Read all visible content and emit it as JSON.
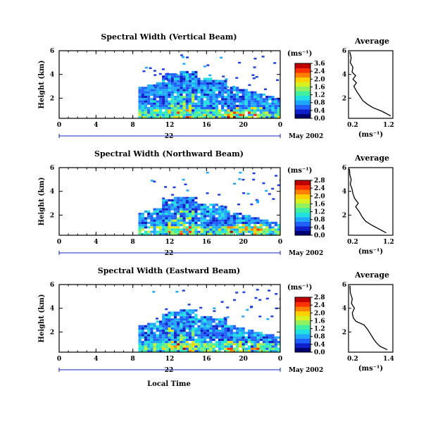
{
  "shared": {
    "xlabel": "Local Time",
    "ylabel": "Height (km)",
    "date_label": "May 2002",
    "date_day": "22",
    "x_ticks": [
      "0",
      "4",
      "8",
      "12",
      "16",
      "20",
      "0"
    ],
    "y_ticks": [
      "6",
      "4",
      "2"
    ],
    "unit_label": "(ms⁻¹)",
    "avg_title": "Average",
    "avg_xlabel": "(ms⁻¹)"
  },
  "colormap": [
    "#000070",
    "#1020c8",
    "#2060ff",
    "#20a8ff",
    "#20e0e0",
    "#40f0a0",
    "#90f060",
    "#d8f020",
    "#ffd000",
    "#ff8000",
    "#ff3000",
    "#c00000"
  ],
  "chart_data": [
    {
      "type": "heatmap",
      "title": "Spectral Width (Vertical Beam)",
      "xlim": [
        0,
        24
      ],
      "ylim": [
        0.3,
        6
      ],
      "colorbar_ticks": [
        "3.6",
        "2.4",
        "2.0",
        "1.6",
        "1.2",
        "0.8",
        "0.4",
        "0.0"
      ],
      "average_profile": {
        "xlim": [
          0.2,
          1.2
        ],
        "x_ticks": [
          "0.2",
          "1.2"
        ],
        "y_ticks": [
          "6",
          "4",
          "2"
        ],
        "height": [
          0.5,
          0.9,
          1.2,
          1.5,
          1.8,
          2.2,
          2.6,
          3.0,
          3.3,
          3.6,
          3.9,
          4.2,
          4.6,
          5.0,
          5.4,
          5.9
        ],
        "value": [
          1.15,
          0.95,
          0.75,
          0.62,
          0.52,
          0.45,
          0.38,
          0.32,
          0.38,
          0.3,
          0.36,
          0.28,
          0.3,
          0.24,
          0.26,
          0.23
        ]
      }
    },
    {
      "type": "heatmap",
      "title": "Spectral Width (Northward Beam)",
      "xlim": [
        0,
        24
      ],
      "ylim": [
        0.3,
        6
      ],
      "colorbar_ticks": [
        "2.8",
        "2.4",
        "2.0",
        "1.6",
        "1.2",
        "0.8",
        "0.4",
        "0.0"
      ],
      "average_profile": {
        "xlim": [
          0.2,
          1.2
        ],
        "x_ticks": [
          "0.2",
          "1.2"
        ],
        "y_ticks": [
          "6",
          "4",
          "2"
        ],
        "height": [
          0.5,
          0.9,
          1.2,
          1.5,
          1.9,
          2.3,
          2.7,
          3.0,
          3.4,
          3.8,
          4.2,
          4.6,
          5.0,
          5.4,
          5.9
        ],
        "value": [
          1.05,
          0.85,
          0.7,
          0.58,
          0.5,
          0.44,
          0.36,
          0.42,
          0.34,
          0.3,
          0.28,
          0.24,
          0.26,
          0.23,
          0.22
        ]
      }
    },
    {
      "type": "heatmap",
      "title": "Spectral Width (Eastward Beam)",
      "xlim": [
        0,
        24
      ],
      "ylim": [
        0.3,
        6
      ],
      "colorbar_ticks": [
        "2.8",
        "2.4",
        "2.0",
        "1.6",
        "1.2",
        "0.8",
        "0.4",
        "0.0"
      ],
      "average_profile": {
        "xlim": [
          0.2,
          1.4
        ],
        "x_ticks": [
          "0.2",
          "1.4"
        ],
        "y_ticks": [
          "6",
          "4",
          "2"
        ],
        "height": [
          0.5,
          0.8,
          1.1,
          1.4,
          1.8,
          2.2,
          2.6,
          2.9,
          3.2,
          3.6,
          4.0,
          4.4,
          4.8,
          5.3,
          5.9
        ],
        "value": [
          1.25,
          1.05,
          0.95,
          0.88,
          0.8,
          0.72,
          0.62,
          0.4,
          0.33,
          0.3,
          0.36,
          0.28,
          0.3,
          0.25,
          0.24
        ]
      }
    }
  ]
}
